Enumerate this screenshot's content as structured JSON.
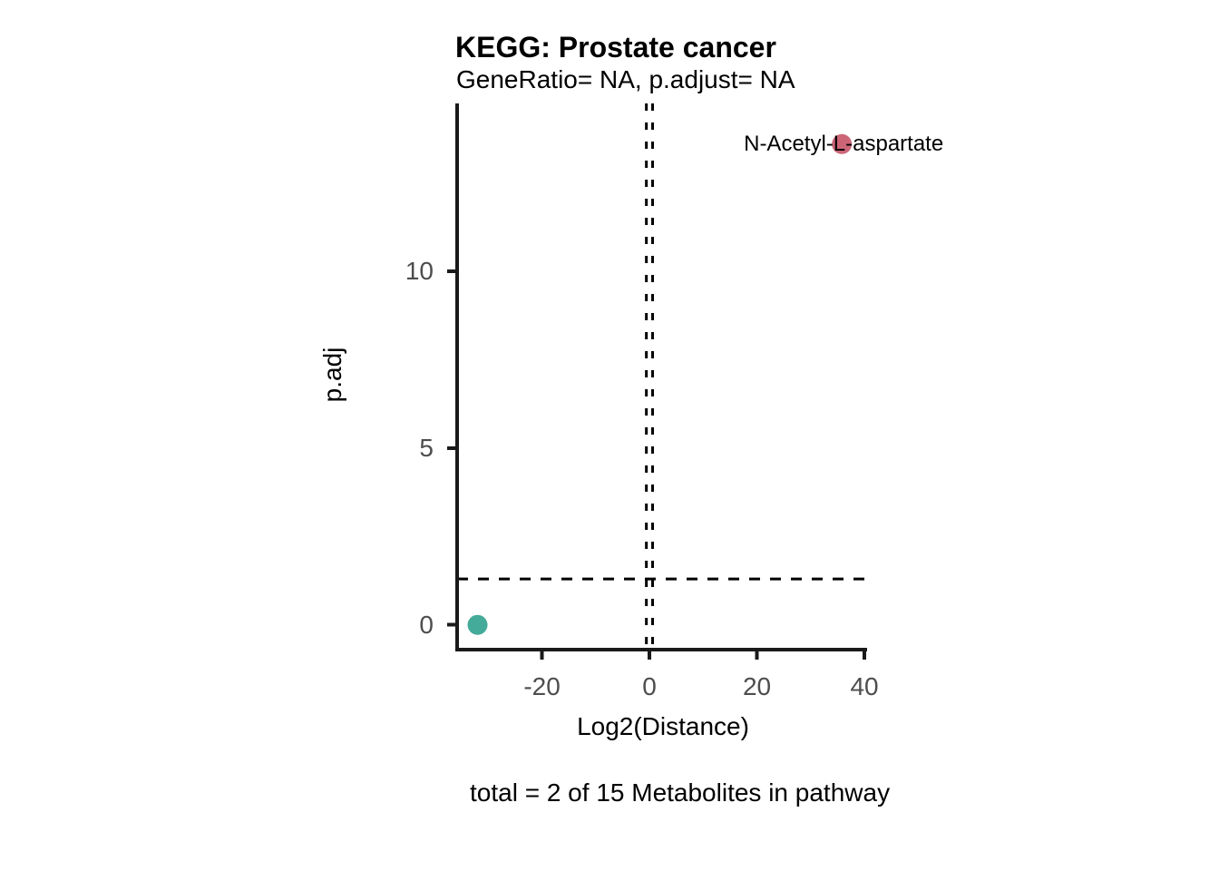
{
  "chart_data": {
    "type": "scatter",
    "title": "KEGG: Prostate cancer",
    "subtitle": "GeneRatio= NA, p.adjust= NA",
    "xlabel": "Log2(Distance)",
    "ylabel": "p.adj",
    "caption": "total = 2 of 15 Metabolites in pathway",
    "xlim": [
      -35.8,
      40.5
    ],
    "ylim": [
      -0.7,
      14.75
    ],
    "x_ticks": [
      "-20",
      "0",
      "20",
      "40"
    ],
    "x_tick_values": [
      -20,
      0,
      20,
      40
    ],
    "y_ticks": [
      "0",
      "5",
      "10"
    ],
    "y_tick_values": [
      0,
      5,
      10
    ],
    "grid": false,
    "legend": "none",
    "points": [
      {
        "label": "N-Acetyl-L-aspartate",
        "x": 35.8,
        "y": 13.6,
        "color": "#CC6677"
      },
      {
        "label": "",
        "x": -32,
        "y": 0,
        "color": "#44AA99"
      }
    ],
    "vlines_dashed": [
      -0.58,
      0.58
    ],
    "hline_dashed": 1.3,
    "colors": {
      "axis": "#1a1a1a",
      "tick_label": "#4d4d4d",
      "dashed_line": "#000000",
      "point_up": "#CC6677",
      "point_down": "#44AA99"
    }
  }
}
